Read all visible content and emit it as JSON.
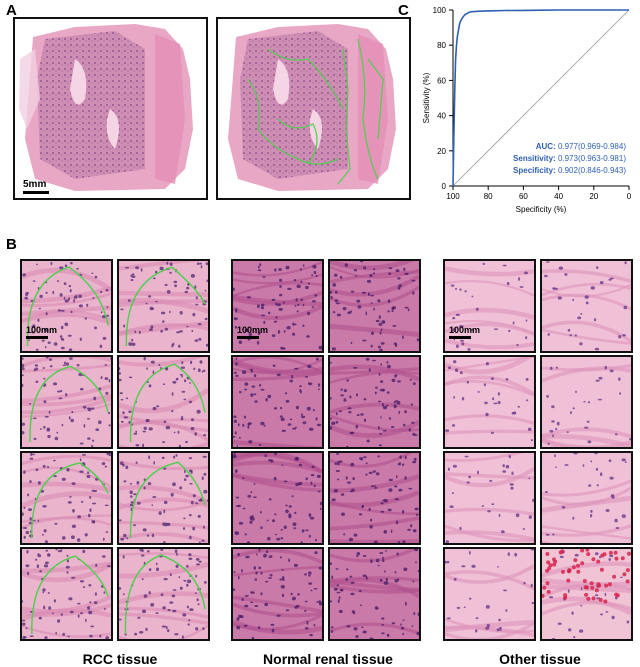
{
  "panels": {
    "a": "A",
    "b": "B",
    "c": "C"
  },
  "panel_a": {
    "scale_label": "5mm"
  },
  "panel_b": {
    "tile_scale_label": "100mm",
    "groups": [
      {
        "label": "RCC tissue",
        "annotated": true
      },
      {
        "label": "Normal renal tissue",
        "annotated": false
      },
      {
        "label": "Other tissue",
        "annotated": false
      }
    ]
  },
  "colors": {
    "roc_line": "#2e5fb4",
    "stat_text": "#2e5fb4",
    "annotation": "#4cd04c",
    "tissue_pink": "#e6a6c4",
    "nucleus_purple": "#6a3a8c"
  },
  "chart_data": {
    "type": "line",
    "title": "",
    "xlabel": "Specificity (%)",
    "ylabel": "Sensitivity (%)",
    "xlim": [
      100,
      0
    ],
    "ylim": [
      0,
      100
    ],
    "x_reversed": true,
    "xticks": [
      100,
      80,
      60,
      40,
      20,
      0
    ],
    "yticks": [
      0,
      20,
      40,
      60,
      80,
      100
    ],
    "grid": false,
    "series": [
      {
        "x": [
          100,
          99.5,
          99,
          98.5,
          98,
          97.5,
          97,
          96.5,
          96,
          95,
          94,
          93,
          92,
          91,
          90,
          85,
          80,
          70,
          60,
          50,
          40,
          30,
          20,
          10,
          0
        ],
        "y": [
          0,
          30,
          55,
          72,
          80,
          85,
          88,
          91,
          93,
          95,
          96.5,
          97.5,
          98,
          98.5,
          99,
          99.3,
          99.5,
          99.7,
          99.8,
          99.9,
          100,
          100,
          100,
          100,
          100
        ]
      }
    ],
    "reference_line": {
      "x": [
        100,
        0
      ],
      "y": [
        0,
        100
      ]
    },
    "annotations": [
      {
        "label": "AUC:",
        "value": "0.977(0.969-0.984)"
      },
      {
        "label": "Sensitivity:",
        "value": "0.973(0.963-0.981)"
      },
      {
        "label": "Specificity:",
        "value": "0.902(0.846-0.943)"
      }
    ]
  }
}
